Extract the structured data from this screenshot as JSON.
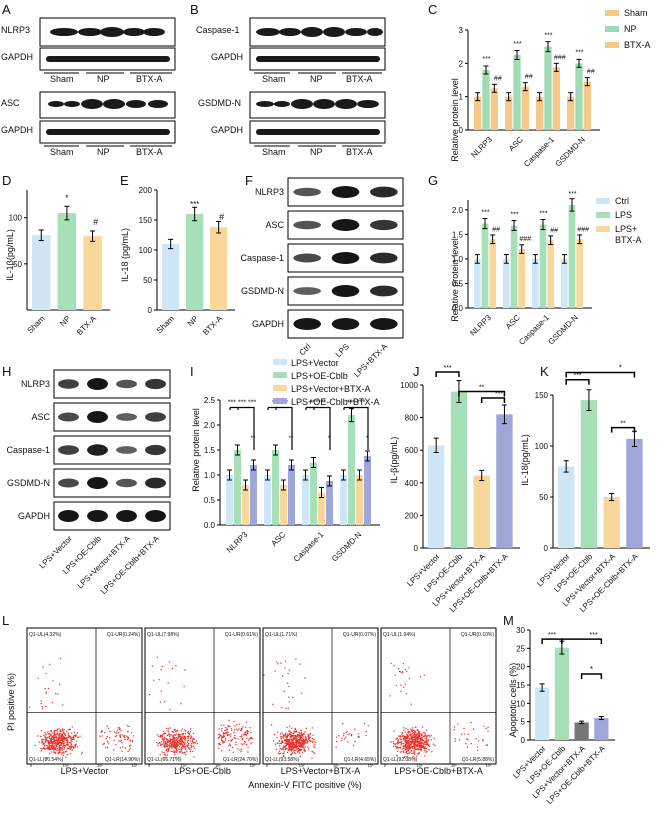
{
  "panels": {
    "A": {
      "label": "A",
      "blots": [
        "NLRP3",
        "GAPDH",
        "ASC",
        "GAPDH"
      ],
      "groups": [
        "Sham",
        "NP",
        "BTX-A"
      ]
    },
    "B": {
      "label": "B",
      "blots": [
        "Caspase-1",
        "GAPDH",
        "GSDMD-N",
        "GAPDH"
      ],
      "groups": [
        "Sham",
        "NP",
        "BTX-A"
      ]
    },
    "C": {
      "label": "C",
      "ylabel": "Relative protein level",
      "categories": [
        "NLRP3",
        "ASC",
        "Caspase-1",
        "GSDMD-N"
      ],
      "legend": [
        "Sham",
        "NP",
        "BTX-A"
      ],
      "sig": [
        "***",
        "##",
        "***",
        "##",
        "***",
        "###",
        "***",
        "##"
      ]
    },
    "D": {
      "label": "D",
      "ylabel": "IL-1β(pg/mL)",
      "categories": [
        "Sham",
        "NP",
        "BTX-A"
      ],
      "sig": [
        "*",
        "#"
      ]
    },
    "E": {
      "label": "E",
      "ylabel": "IL-18 (pg/mL)",
      "categories": [
        "Sham",
        "NP",
        "BTX-A"
      ],
      "sig": [
        "***",
        "#"
      ]
    },
    "F": {
      "label": "F",
      "blots": [
        "NLRP3",
        "ASC",
        "Caspase-1",
        "GSDMD-N",
        "GAPDH"
      ],
      "groups": [
        "Ctrl",
        "LPS",
        "LPS+BTX-A"
      ]
    },
    "G": {
      "label": "G",
      "ylabel": "Relative protein level",
      "categories": [
        "NLRP3",
        "ASC",
        "Caspase-1",
        "GSDMD-N"
      ],
      "legend": [
        "Ctrl",
        "LPS",
        "LPS+",
        "BTX-A"
      ],
      "sig": [
        "***",
        "##",
        "***",
        "###",
        "***",
        "##",
        "***",
        "###"
      ]
    },
    "H": {
      "label": "H",
      "blots": [
        "NLRP3",
        "ASC",
        "Caspase-1",
        "GSDMD-N",
        "GAPDH"
      ],
      "groups": [
        "LPS+Vector",
        "LPS+OE-Cblb",
        "LPS+Vector+BTX-A",
        "LPS+OE-Cblb+BTX-A"
      ]
    },
    "I": {
      "label": "I",
      "ylabel": "Relative protein level",
      "categories": [
        "NLRP3",
        "ASC",
        "Caspase-1",
        "GSDMD-N"
      ],
      "legend": [
        "LPS+Vector",
        "LPS+OE-Cblb",
        "LPS+Vector+BTX-A",
        "LPS+OE-Cblb+BTX-A"
      ],
      "sig": [
        "*** *** ***",
        "******",
        "******",
        "*** ***",
        "**",
        "**",
        "*",
        "*"
      ]
    },
    "J": {
      "label": "J",
      "ylabel": "IL-β(pg/mL)",
      "categories": [
        "LPS+Vector",
        "LPS+OE-Cblb",
        "LPS+Vector+BTX-A",
        "LPS+OE-Cblb+BTX-A"
      ],
      "sig": [
        "***",
        "**",
        "***"
      ]
    },
    "K": {
      "label": "K",
      "ylabel": "IL-18(pg/mL)",
      "categories": [
        "LPS+Vector",
        "LPS+OE-Cblb",
        "LPS+Vector+BTX-A",
        "LPS+OE-Cblb+BTX-A"
      ],
      "sig": [
        "***",
        "*",
        "**"
      ]
    },
    "L": {
      "label": "L",
      "ylabel": "PI positive (%)",
      "xlabel": "Annexin-V FITC  positive (%)",
      "plots": [
        {
          "name": "LPS+Vector",
          "ul": "Q1-UL(4.32%)",
          "ur": "Q1-UR(0.24%)",
          "ll": "Q1-LL(80.54%)",
          "lr": "Q1-LR(14.90%)"
        },
        {
          "name": "LPS+OE-Cblb",
          "ul": "Q1-UL(7.98%)",
          "ur": "Q1-UR(0.61%)",
          "ll": "Q1-LL(66.71%)",
          "lr": "Q1-LR(24.70%)"
        },
        {
          "name": "LPS+Vector+BTX-A",
          "ul": "Q1-UL(1.71%)",
          "ur": "Q1-UR(0.07%)",
          "ll": "Q1-LL(93.58%)",
          "lr": "Q1-LR(4.65%)"
        },
        {
          "name": "LPS+OE-Cblb+BTX-A",
          "ul": "Q1-UL(1.94%)",
          "ur": "Q1-UR(0.10%)",
          "ll": "Q1-LL(92.08%)",
          "lr": "Q1-LR(5.88%)"
        }
      ]
    },
    "M": {
      "label": "M",
      "ylabel": "Apoptotic cells (%)",
      "categories": [
        "LPS+Vector",
        "LPS+OE-Cblb",
        "LPS+Vector+BTX-A",
        "LPS+OE-Cblb+BTX-A"
      ],
      "sig": [
        "***",
        "***",
        "*"
      ]
    }
  },
  "colors": {
    "c1": "#f6c98a",
    "c2": "#9fdcb4",
    "c3": "#f6c98a",
    "blue": "#cfe6f6",
    "green": "#a7dfb8",
    "orange": "#f9d79b",
    "purple": "#9fa7d8",
    "dark": "#777777",
    "flow": "#e8302a"
  },
  "chart_data": [
    {
      "panel": "C",
      "type": "bar",
      "categories": [
        "NLRP3",
        "ASC",
        "Caspase-1",
        "GSDMD-N"
      ],
      "ylim": [
        0,
        3
      ],
      "series": [
        {
          "name": "Sham",
          "values": [
            1.0,
            1.0,
            1.0,
            1.0
          ]
        },
        {
          "name": "NP",
          "values": [
            1.8,
            2.25,
            2.5,
            2.0
          ]
        },
        {
          "name": "BTX-A",
          "values": [
            1.25,
            1.3,
            1.88,
            1.45
          ]
        }
      ]
    },
    {
      "panel": "D",
      "type": "bar",
      "categories": [
        "Sham",
        "NP",
        "BTX-A"
      ],
      "ylim": [
        0,
        130
      ],
      "values": [
        81,
        105,
        80
      ]
    },
    {
      "panel": "E",
      "type": "bar",
      "categories": [
        "Sham",
        "NP",
        "BTX-A"
      ],
      "ylim": [
        0,
        200
      ],
      "values": [
        110,
        160,
        138
      ]
    },
    {
      "panel": "G",
      "type": "bar",
      "categories": [
        "NLRP3",
        "ASC",
        "Caspase-1",
        "GSDMD-N"
      ],
      "ylim": [
        0,
        2.2
      ],
      "series": [
        {
          "name": "Ctrl",
          "values": [
            1.0,
            1.0,
            1.0,
            1.0
          ]
        },
        {
          "name": "LPS",
          "values": [
            1.72,
            1.68,
            1.7,
            2.1
          ]
        },
        {
          "name": "LPS+BTX-A",
          "values": [
            1.4,
            1.2,
            1.38,
            1.4
          ]
        }
      ]
    },
    {
      "panel": "I",
      "type": "bar",
      "categories": [
        "NLRP3",
        "ASC",
        "Caspase-1",
        "GSDMD-N"
      ],
      "ylim": [
        0,
        2.5
      ],
      "series": [
        {
          "name": "LPS+Vector",
          "values": [
            1.0,
            1.0,
            1.0,
            1.0
          ]
        },
        {
          "name": "LPS+OE-Cblb",
          "values": [
            1.5,
            1.5,
            1.25,
            2.2
          ]
        },
        {
          "name": "LPS+Vector+BTX-A",
          "values": [
            0.8,
            0.8,
            0.65,
            1.0
          ]
        },
        {
          "name": "LPS+OE-Cblb+BTX-A",
          "values": [
            1.2,
            1.2,
            0.88,
            1.38
          ]
        }
      ]
    },
    {
      "panel": "J",
      "type": "bar",
      "categories": [
        "LPS+Vector",
        "LPS+OE-Cblb",
        "LPS+Vector+BTX-A",
        "LPS+OE-Cblb+BTX-A"
      ],
      "ylim": [
        0,
        1000
      ],
      "values": [
        630,
        960,
        445,
        820
      ]
    },
    {
      "panel": "K",
      "type": "bar",
      "categories": [
        "LPS+Vector",
        "LPS+OE-Cblb",
        "LPS+Vector+BTX-A",
        "LPS+OE-Cblb+BTX-A"
      ],
      "ylim": [
        0,
        150
      ],
      "values": [
        80,
        145,
        50,
        107
      ]
    },
    {
      "panel": "M",
      "type": "bar",
      "categories": [
        "LPS+Vector",
        "LPS+OE-Cblb",
        "LPS+Vector+BTX-A",
        "LPS+OE-Cblb+BTX-A"
      ],
      "ylim": [
        0,
        30
      ],
      "values": [
        14.3,
        25.2,
        4.8,
        6.0
      ]
    }
  ]
}
